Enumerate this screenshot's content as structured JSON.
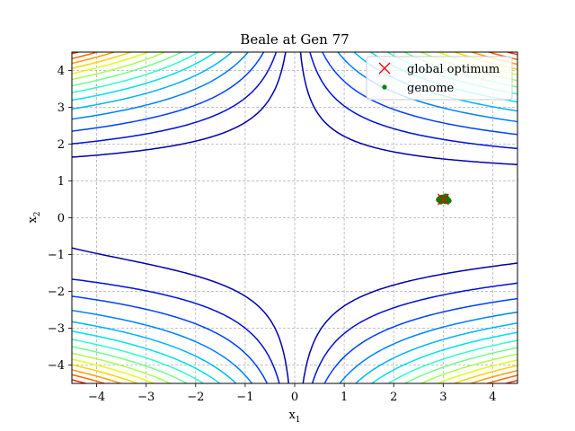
{
  "chart_data": {
    "type": "scatter",
    "title": "Beale at Gen 77",
    "xlabel": {
      "base": "x",
      "sub": "1"
    },
    "ylabel": {
      "base": "x",
      "sub": "2"
    },
    "xlim": [
      -4.5,
      4.5
    ],
    "ylim": [
      -4.5,
      4.5
    ],
    "xticks": [
      -4,
      -3,
      -2,
      -1,
      0,
      1,
      2,
      3,
      4
    ],
    "yticks": [
      -4,
      -3,
      -2,
      -1,
      0,
      1,
      2,
      3,
      4
    ],
    "tick_labels_x": [
      "−4",
      "−3",
      "−2",
      "−1",
      "0",
      "1",
      "2",
      "3",
      "4"
    ],
    "tick_labels_y": [
      "−4",
      "−3",
      "−2",
      "−1",
      "0",
      "1",
      "2",
      "3",
      "4"
    ],
    "grid": true,
    "legend": {
      "placement": "top-right",
      "entries": [
        {
          "label": "global optimum",
          "marker": "x",
          "color": "#ff0000"
        },
        {
          "label": "genome",
          "marker": "dot",
          "color": "#008000"
        }
      ]
    },
    "global_optimum": {
      "x": 3,
      "y": 0.5
    },
    "genome_points": [
      {
        "x": 2.93,
        "y": 0.52
      },
      {
        "x": 2.97,
        "y": 0.55
      },
      {
        "x": 3.02,
        "y": 0.56
      },
      {
        "x": 3.06,
        "y": 0.53
      },
      {
        "x": 3.09,
        "y": 0.48
      },
      {
        "x": 3.04,
        "y": 0.45
      },
      {
        "x": 2.98,
        "y": 0.47
      },
      {
        "x": 2.95,
        "y": 0.44
      },
      {
        "x": 3.01,
        "y": 0.5
      },
      {
        "x": 3.08,
        "y": 0.51
      },
      {
        "x": 2.91,
        "y": 0.49
      },
      {
        "x": 3.05,
        "y": 0.58
      },
      {
        "x": 2.99,
        "y": 0.53
      },
      {
        "x": 3.11,
        "y": 0.46
      },
      {
        "x": 2.96,
        "y": 0.5
      }
    ],
    "contours": {
      "function": "beale",
      "levels": [
        200,
        1000,
        3000,
        7000,
        13000,
        21000,
        31000,
        43000,
        57000,
        73000,
        91000,
        111000,
        133000,
        160000,
        190000
      ],
      "colors": [
        "#0000a8",
        "#0010d8",
        "#0040ff",
        "#0080ff",
        "#00b4ff",
        "#00e0f0",
        "#30ffc8",
        "#70ff8c",
        "#a8ff50",
        "#e0ff18",
        "#ffd400",
        "#ff9c00",
        "#ff6400",
        "#ff2c00",
        "#d40000"
      ]
    }
  }
}
